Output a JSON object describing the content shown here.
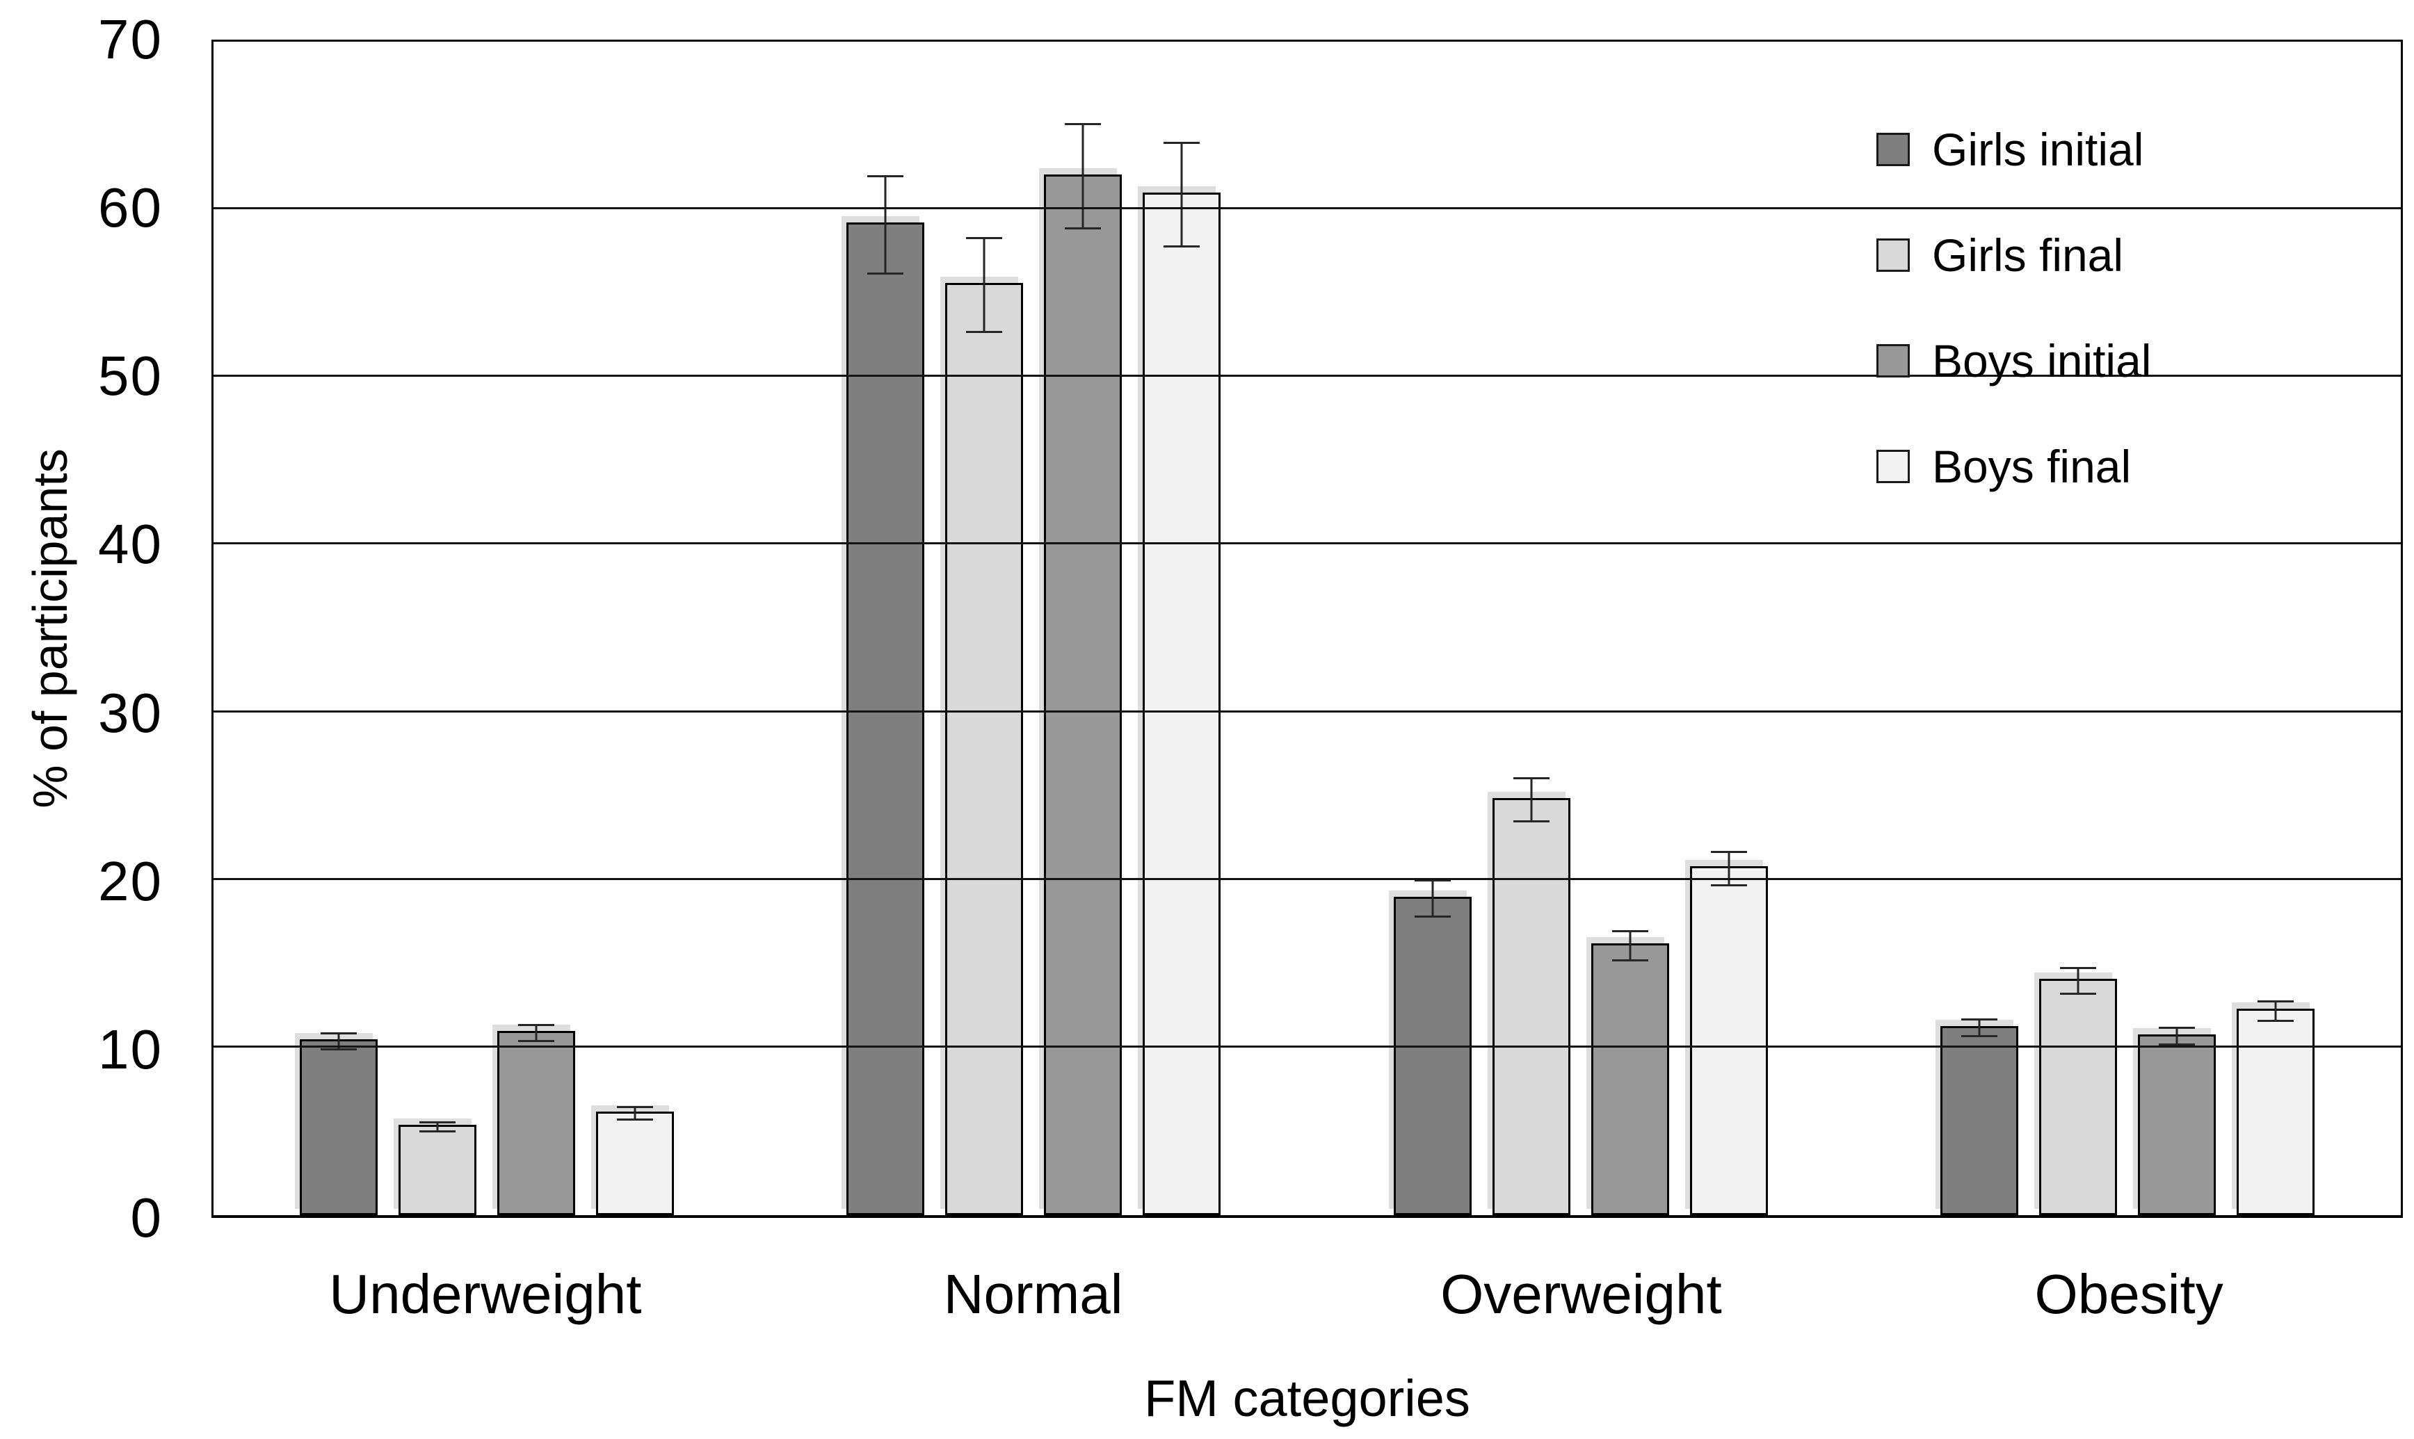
{
  "chart_data": {
    "type": "bar",
    "title": "",
    "xlabel": "FM categories",
    "ylabel": "% of participants",
    "ylim": [
      0,
      70
    ],
    "ytick_step": 10,
    "yticks": [
      "0",
      "10",
      "20",
      "30",
      "40",
      "50",
      "60",
      "70"
    ],
    "grid": "horizontal",
    "legend_position": "top-right-inside",
    "categories": [
      "Underweight",
      "Normal",
      "Overweight",
      "Obesity"
    ],
    "series": [
      {
        "name": "Girls initial",
        "color": "#7f7f7f",
        "values": [
          10.5,
          59.2,
          19.0,
          11.3
        ],
        "errors": [
          0.5,
          2.9,
          1.1,
          0.5
        ]
      },
      {
        "name": "Girls final",
        "color": "#d9d9d9",
        "values": [
          5.4,
          55.6,
          24.9,
          14.1
        ],
        "errors": [
          0.3,
          2.8,
          1.3,
          0.8
        ]
      },
      {
        "name": "Boys initial",
        "color": "#989898",
        "values": [
          11.0,
          62.1,
          16.2,
          10.8
        ],
        "errors": [
          0.5,
          3.1,
          0.9,
          0.5
        ]
      },
      {
        "name": "Boys final",
        "color": "#f2f2f2",
        "values": [
          6.2,
          61.0,
          20.8,
          12.3
        ],
        "errors": [
          0.4,
          3.1,
          1.0,
          0.6
        ]
      }
    ]
  }
}
